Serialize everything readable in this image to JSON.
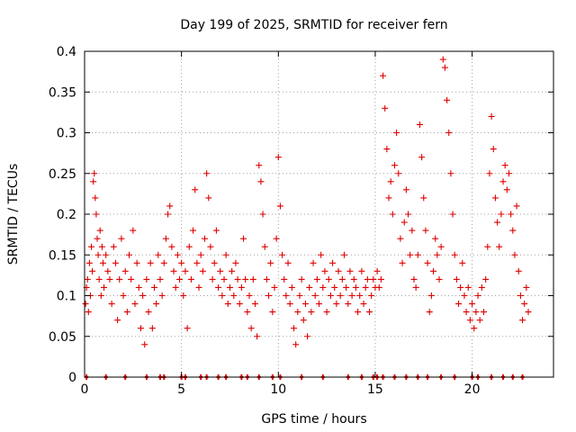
{
  "chart_data": {
    "type": "scatter",
    "title": "Day 199 of 2025, SRMTID for receiver fern",
    "xlabel": "GPS time / hours",
    "ylabel": "SRMTID / TECUs",
    "xlim": [
      0,
      24.2
    ],
    "ylim": [
      0,
      0.4
    ],
    "x_ticks": [
      0,
      5,
      10,
      15,
      20
    ],
    "x_tick_labels": [
      "0",
      "5",
      "10",
      "15",
      "20"
    ],
    "y_ticks": [
      0,
      0.05,
      0.1,
      0.15,
      0.2,
      0.25,
      0.3,
      0.35,
      0.4
    ],
    "y_tick_labels": [
      "0",
      "0.05",
      "0.1",
      "0.15",
      "0.2",
      "0.25",
      "0.3",
      "0.35",
      "0.4"
    ],
    "grid": true,
    "marker": "+",
    "color": "#e00000",
    "series": [
      {
        "name": "SRMTID",
        "points": [
          [
            0.05,
            0.09
          ],
          [
            0.1,
            0.11
          ],
          [
            0.15,
            0.12
          ],
          [
            0.2,
            0.08
          ],
          [
            0.25,
            0.14
          ],
          [
            0.3,
            0.1
          ],
          [
            0.35,
            0.16
          ],
          [
            0.4,
            0.13
          ],
          [
            0.45,
            0.24
          ],
          [
            0.5,
            0.25
          ],
          [
            0.55,
            0.22
          ],
          [
            0.6,
            0.2
          ],
          [
            0.65,
            0.17
          ],
          [
            0.7,
            0.15
          ],
          [
            0.75,
            0.12
          ],
          [
            0.8,
            0.18
          ],
          [
            0.85,
            0.1
          ],
          [
            0.9,
            0.16
          ],
          [
            0.95,
            0.14
          ],
          [
            1.0,
            0.11
          ],
          [
            1.1,
            0.15
          ],
          [
            1.2,
            0.13
          ],
          [
            1.3,
            0.12
          ],
          [
            1.4,
            0.09
          ],
          [
            1.5,
            0.16
          ],
          [
            1.6,
            0.14
          ],
          [
            1.7,
            0.07
          ],
          [
            1.8,
            0.12
          ],
          [
            1.9,
            0.17
          ],
          [
            2.0,
            0.1
          ],
          [
            2.1,
            0.13
          ],
          [
            2.2,
            0.08
          ],
          [
            2.3,
            0.15
          ],
          [
            2.4,
            0.12
          ],
          [
            2.5,
            0.18
          ],
          [
            2.6,
            0.09
          ],
          [
            2.7,
            0.14
          ],
          [
            2.8,
            0.11
          ],
          [
            2.9,
            0.06
          ],
          [
            3.0,
            0.1
          ],
          [
            3.1,
            0.04
          ],
          [
            3.2,
            0.12
          ],
          [
            3.3,
            0.08
          ],
          [
            3.4,
            0.14
          ],
          [
            3.5,
            0.06
          ],
          [
            3.6,
            0.11
          ],
          [
            3.7,
            0.09
          ],
          [
            3.8,
            0.15
          ],
          [
            3.9,
            0.12
          ],
          [
            4.0,
            0.1
          ],
          [
            4.1,
            0.14
          ],
          [
            4.2,
            0.17
          ],
          [
            4.3,
            0.2
          ],
          [
            4.4,
            0.21
          ],
          [
            4.5,
            0.16
          ],
          [
            4.6,
            0.13
          ],
          [
            4.7,
            0.11
          ],
          [
            4.8,
            0.15
          ],
          [
            4.9,
            0.12
          ],
          [
            5.0,
            0.14
          ],
          [
            5.1,
            0.1
          ],
          [
            5.2,
            0.13
          ],
          [
            5.3,
            0.06
          ],
          [
            5.4,
            0.16
          ],
          [
            5.5,
            0.12
          ],
          [
            5.6,
            0.18
          ],
          [
            5.7,
            0.23
          ],
          [
            5.8,
            0.14
          ],
          [
            5.9,
            0.11
          ],
          [
            6.0,
            0.15
          ],
          [
            6.1,
            0.13
          ],
          [
            6.2,
            0.17
          ],
          [
            6.3,
            0.25
          ],
          [
            6.4,
            0.22
          ],
          [
            6.5,
            0.16
          ],
          [
            6.6,
            0.12
          ],
          [
            6.7,
            0.14
          ],
          [
            6.8,
            0.18
          ],
          [
            6.9,
            0.11
          ],
          [
            7.0,
            0.13
          ],
          [
            7.1,
            0.1
          ],
          [
            7.2,
            0.12
          ],
          [
            7.3,
            0.15
          ],
          [
            7.4,
            0.09
          ],
          [
            7.5,
            0.11
          ],
          [
            7.6,
            0.13
          ],
          [
            7.7,
            0.1
          ],
          [
            7.8,
            0.14
          ],
          [
            7.9,
            0.12
          ],
          [
            8.0,
            0.09
          ],
          [
            8.1,
            0.11
          ],
          [
            8.2,
            0.17
          ],
          [
            8.3,
            0.12
          ],
          [
            8.4,
            0.08
          ],
          [
            8.5,
            0.1
          ],
          [
            8.6,
            0.06
          ],
          [
            8.7,
            0.12
          ],
          [
            8.8,
            0.09
          ],
          [
            8.9,
            0.05
          ],
          [
            9.0,
            0.26
          ],
          [
            9.1,
            0.24
          ],
          [
            9.2,
            0.2
          ],
          [
            9.3,
            0.16
          ],
          [
            9.4,
            0.12
          ],
          [
            9.5,
            0.1
          ],
          [
            9.6,
            0.14
          ],
          [
            9.7,
            0.08
          ],
          [
            9.8,
            0.11
          ],
          [
            9.9,
            0.17
          ],
          [
            10.0,
            0.27
          ],
          [
            10.1,
            0.21
          ],
          [
            10.2,
            0.15
          ],
          [
            10.3,
            0.12
          ],
          [
            10.4,
            0.1
          ],
          [
            10.5,
            0.14
          ],
          [
            10.6,
            0.09
          ],
          [
            10.7,
            0.11
          ],
          [
            10.8,
            0.06
          ],
          [
            10.9,
            0.04
          ],
          [
            11.0,
            0.08
          ],
          [
            11.1,
            0.1
          ],
          [
            11.2,
            0.12
          ],
          [
            11.3,
            0.07
          ],
          [
            11.4,
            0.09
          ],
          [
            11.5,
            0.05
          ],
          [
            11.6,
            0.11
          ],
          [
            11.7,
            0.08
          ],
          [
            11.8,
            0.14
          ],
          [
            11.9,
            0.1
          ],
          [
            12.0,
            0.12
          ],
          [
            12.1,
            0.09
          ],
          [
            12.2,
            0.15
          ],
          [
            12.3,
            0.11
          ],
          [
            12.4,
            0.13
          ],
          [
            12.5,
            0.08
          ],
          [
            12.6,
            0.12
          ],
          [
            12.7,
            0.1
          ],
          [
            12.8,
            0.14
          ],
          [
            12.9,
            0.11
          ],
          [
            13.0,
            0.09
          ],
          [
            13.1,
            0.13
          ],
          [
            13.2,
            0.1
          ],
          [
            13.3,
            0.12
          ],
          [
            13.4,
            0.15
          ],
          [
            13.5,
            0.11
          ],
          [
            13.6,
            0.09
          ],
          [
            13.7,
            0.13
          ],
          [
            13.8,
            0.1
          ],
          [
            13.9,
            0.12
          ],
          [
            14.0,
            0.11
          ],
          [
            14.1,
            0.08
          ],
          [
            14.2,
            0.1
          ],
          [
            14.3,
            0.13
          ],
          [
            14.4,
            0.09
          ],
          [
            14.5,
            0.11
          ],
          [
            14.6,
            0.12
          ],
          [
            14.7,
            0.08
          ],
          [
            14.8,
            0.1
          ],
          [
            14.9,
            0.12
          ],
          [
            15.0,
            0.11
          ],
          [
            15.1,
            0.13
          ],
          [
            15.2,
            0.11
          ],
          [
            15.3,
            0.12
          ],
          [
            15.4,
            0.37
          ],
          [
            15.5,
            0.33
          ],
          [
            15.6,
            0.28
          ],
          [
            15.7,
            0.22
          ],
          [
            15.8,
            0.24
          ],
          [
            15.9,
            0.2
          ],
          [
            16.0,
            0.26
          ],
          [
            16.1,
            0.3
          ],
          [
            16.2,
            0.25
          ],
          [
            16.3,
            0.17
          ],
          [
            16.4,
            0.14
          ],
          [
            16.5,
            0.19
          ],
          [
            16.6,
            0.23
          ],
          [
            16.7,
            0.2
          ],
          [
            16.8,
            0.15
          ],
          [
            16.9,
            0.18
          ],
          [
            17.0,
            0.12
          ],
          [
            17.1,
            0.11
          ],
          [
            17.2,
            0.15
          ],
          [
            17.3,
            0.31
          ],
          [
            17.4,
            0.27
          ],
          [
            17.5,
            0.22
          ],
          [
            17.6,
            0.18
          ],
          [
            17.7,
            0.14
          ],
          [
            17.8,
            0.08
          ],
          [
            17.9,
            0.1
          ],
          [
            18.0,
            0.13
          ],
          [
            18.1,
            0.17
          ],
          [
            18.2,
            0.15
          ],
          [
            18.3,
            0.12
          ],
          [
            18.4,
            0.16
          ],
          [
            18.5,
            0.39
          ],
          [
            18.6,
            0.38
          ],
          [
            18.7,
            0.34
          ],
          [
            18.8,
            0.3
          ],
          [
            18.9,
            0.25
          ],
          [
            19.0,
            0.2
          ],
          [
            19.1,
            0.15
          ],
          [
            19.2,
            0.12
          ],
          [
            19.3,
            0.09
          ],
          [
            19.4,
            0.11
          ],
          [
            19.5,
            0.14
          ],
          [
            19.6,
            0.1
          ],
          [
            19.7,
            0.08
          ],
          [
            19.8,
            0.11
          ],
          [
            19.9,
            0.07
          ],
          [
            20.0,
            0.09
          ],
          [
            20.1,
            0.06
          ],
          [
            20.2,
            0.08
          ],
          [
            20.3,
            0.1
          ],
          [
            20.4,
            0.07
          ],
          [
            20.5,
            0.11
          ],
          [
            20.6,
            0.08
          ],
          [
            20.7,
            0.12
          ],
          [
            20.8,
            0.16
          ],
          [
            20.9,
            0.25
          ],
          [
            21.0,
            0.32
          ],
          [
            21.1,
            0.28
          ],
          [
            21.2,
            0.22
          ],
          [
            21.3,
            0.19
          ],
          [
            21.4,
            0.16
          ],
          [
            21.5,
            0.2
          ],
          [
            21.6,
            0.24
          ],
          [
            21.7,
            0.26
          ],
          [
            21.8,
            0.23
          ],
          [
            21.9,
            0.25
          ],
          [
            22.0,
            0.2
          ],
          [
            22.1,
            0.18
          ],
          [
            22.2,
            0.15
          ],
          [
            22.3,
            0.21
          ],
          [
            22.4,
            0.13
          ],
          [
            22.5,
            0.1
          ],
          [
            22.6,
            0.07
          ],
          [
            22.7,
            0.09
          ],
          [
            22.8,
            0.11
          ],
          [
            22.9,
            0.08
          ]
        ]
      }
    ],
    "zero_markers_x": [
      0.1,
      1.1,
      2.1,
      3.2,
      3.9,
      4.1,
      5.0,
      5.2,
      6.0,
      6.3,
      6.9,
      7.3,
      8.1,
      8.4,
      9.0,
      9.7,
      10.1,
      11.2,
      12.3,
      13.6,
      14.3,
      14.9,
      15.1,
      15.4,
      16.0,
      16.6,
      17.2,
      17.7,
      18.4,
      19.1,
      20.0,
      20.3,
      21.0,
      21.6,
      22.1,
      22.6
    ]
  }
}
